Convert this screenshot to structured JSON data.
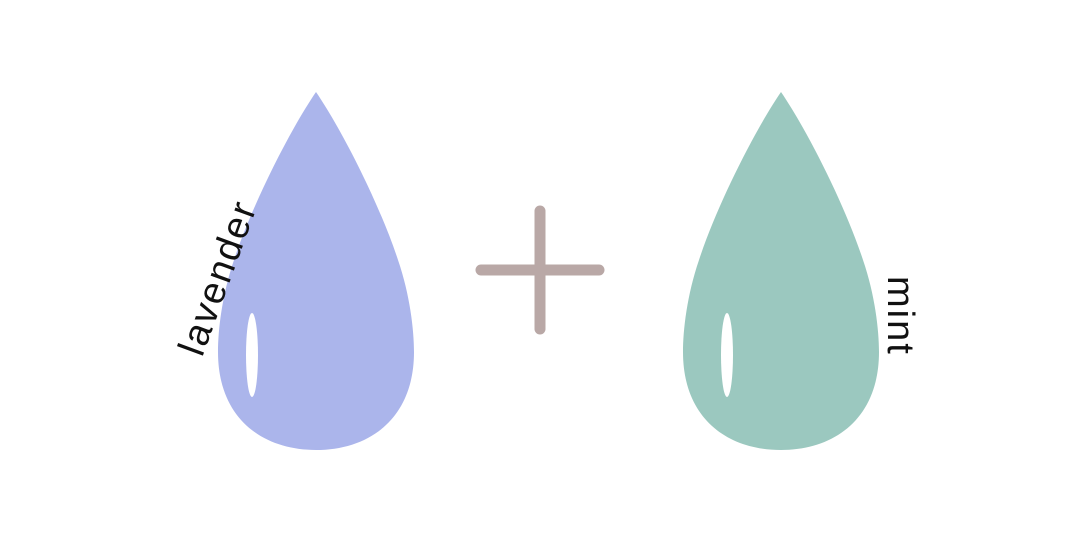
{
  "drops": [
    {
      "label": "lavender",
      "color": "#abb5eb",
      "highlight_color": "#ffffff"
    },
    {
      "label": "mint",
      "color": "#9bc8bf",
      "highlight_color": "#ffffff"
    }
  ],
  "operator": {
    "symbol": "plus-icon",
    "color": "#b9a8a6"
  }
}
